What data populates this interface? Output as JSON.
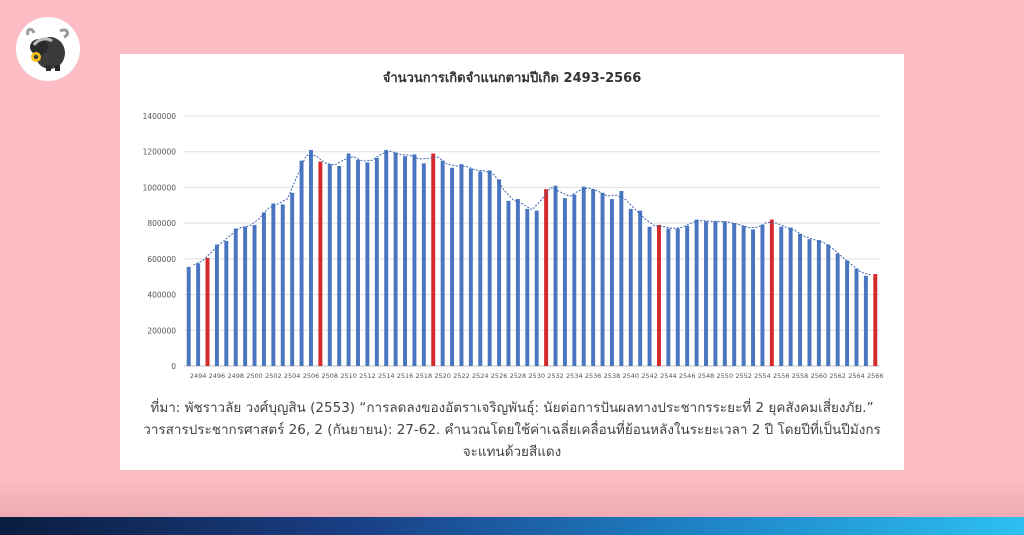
{
  "brand": {
    "logo_icon": "ox-bull-icon"
  },
  "colors": {
    "background": "#fbbcc3",
    "bar": "#4a76c1",
    "highlight": "#d42a2a",
    "trend": "#3c64b0"
  },
  "chart_data": {
    "type": "bar",
    "title": "จำนวนการเกิดจำแนกตามปีเกิด  2493-2566",
    "xlabel": "",
    "ylabel": "",
    "ylim": [
      0,
      1400000
    ],
    "yticks": [
      "0",
      "200000",
      "400000",
      "600000",
      "800000",
      "1000000",
      "1200000",
      "1400000"
    ],
    "x_tick_labels": [
      "2494",
      "2496",
      "2498",
      "2500",
      "2502",
      "2504",
      "2506",
      "2508",
      "2510",
      "2512",
      "2514",
      "2516",
      "2518",
      "2520",
      "2522",
      "2524",
      "2526",
      "2528",
      "2530",
      "2532",
      "2534",
      "2536",
      "2538",
      "2540",
      "2542",
      "2544",
      "2546",
      "2548",
      "2550",
      "2552",
      "2554",
      "2556",
      "2558",
      "2560",
      "2562",
      "2564",
      "2566"
    ],
    "categories": [
      "2493",
      "2494",
      "2495",
      "2496",
      "2497",
      "2498",
      "2499",
      "2500",
      "2501",
      "2502",
      "2503",
      "2504",
      "2505",
      "2506",
      "2507",
      "2508",
      "2509",
      "2510",
      "2511",
      "2512",
      "2513",
      "2514",
      "2515",
      "2516",
      "2517",
      "2518",
      "2519",
      "2520",
      "2521",
      "2522",
      "2523",
      "2524",
      "2525",
      "2526",
      "2527",
      "2528",
      "2529",
      "2530",
      "2531",
      "2532",
      "2533",
      "2534",
      "2535",
      "2536",
      "2537",
      "2538",
      "2539",
      "2540",
      "2541",
      "2542",
      "2543",
      "2544",
      "2545",
      "2546",
      "2547",
      "2548",
      "2549",
      "2550",
      "2551",
      "2552",
      "2553",
      "2554",
      "2555",
      "2556",
      "2557",
      "2558",
      "2559",
      "2560",
      "2561",
      "2562",
      "2563",
      "2564",
      "2565",
      "2566"
    ],
    "values": [
      555000,
      575000,
      605000,
      680000,
      700000,
      770000,
      780000,
      790000,
      860000,
      910000,
      905000,
      970000,
      1150000,
      1210000,
      1145000,
      1130000,
      1120000,
      1190000,
      1155000,
      1140000,
      1165000,
      1210000,
      1195000,
      1175000,
      1185000,
      1135000,
      1190000,
      1150000,
      1110000,
      1130000,
      1105000,
      1090000,
      1095000,
      1045000,
      925000,
      935000,
      880000,
      870000,
      990000,
      1010000,
      940000,
      960000,
      1005000,
      990000,
      970000,
      935000,
      980000,
      880000,
      870000,
      780000,
      790000,
      770000,
      770000,
      785000,
      820000,
      810000,
      810000,
      810000,
      800000,
      785000,
      765000,
      790000,
      820000,
      780000,
      775000,
      740000,
      710000,
      705000,
      680000,
      630000,
      590000,
      545000,
      505000,
      515000
    ],
    "highlight_years": [
      "2495",
      "2507",
      "2519",
      "2531",
      "2543",
      "2555",
      "2566"
    ],
    "trend": {
      "type": "moving-average",
      "window": 2
    },
    "grid": true,
    "legend": "none"
  },
  "caption": {
    "line1": "ที่มา: พัชราวลัย วงศ์บุญสิน (2553) “การลดลงของอัตราเจริญพันธุ์: นัยต่อการปันผลทางประชากรระยะที่ 2 ยุคสังคมเสี่ยงภัย.”",
    "line2": "วารสารประชากรศาสตร์ 26, 2 (กันยายน): 27-62. คำนวณโดยใช้ค่าเฉลี่ยเคลื่อนที่ย้อนหลังในระยะเวลา 2 ปี โดยปีที่เป็นปีมังกร",
    "line3": "จะแทนด้วยสีแดง"
  }
}
